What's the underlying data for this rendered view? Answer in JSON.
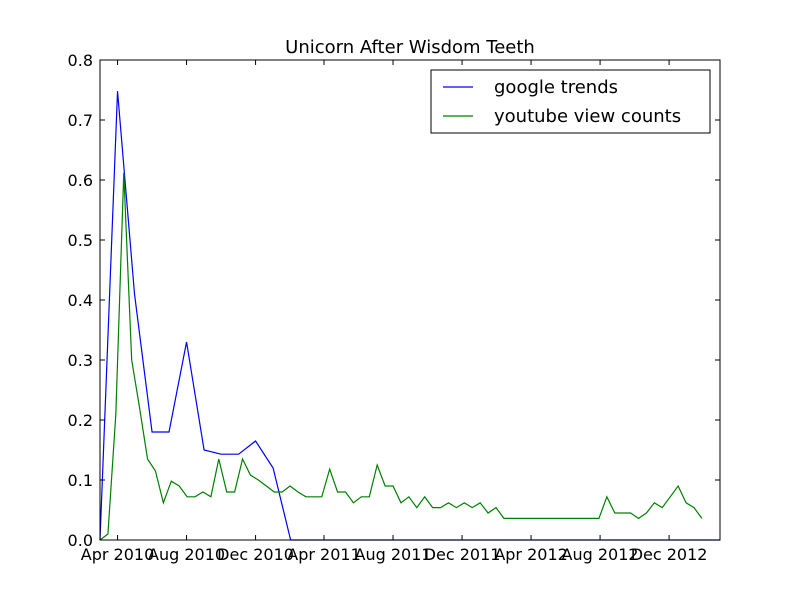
{
  "chart_data": {
    "type": "line",
    "title": "Unicorn After Wisdom Teeth",
    "xlabel": "",
    "ylabel": "",
    "x_range": [
      "2010-03-01",
      "2013-03-01"
    ],
    "ylim": [
      0,
      0.8
    ],
    "yticks": [
      0.0,
      0.1,
      0.2,
      0.3,
      0.4,
      0.5,
      0.6,
      0.7,
      0.8
    ],
    "ytick_labels": [
      "0.0",
      "0.1",
      "0.2",
      "0.3",
      "0.4",
      "0.5",
      "0.6",
      "0.7",
      "0.8"
    ],
    "xticks": [
      "2010-04-01",
      "2010-08-01",
      "2010-12-01",
      "2011-04-01",
      "2011-08-01",
      "2011-12-01",
      "2012-04-01",
      "2012-08-01",
      "2012-12-01"
    ],
    "xtick_labels": [
      "Apr 2010",
      "Aug 2010",
      "Dec 2010",
      "Apr 2011",
      "Aug 2011",
      "Dec 2011",
      "Apr 2012",
      "Aug 2012",
      "Dec 2012"
    ],
    "grid": false,
    "legend_position": "top-right",
    "series": [
      {
        "name": "google trends",
        "color": "#0000ff",
        "x": [
          "2010-03-01",
          "2010-04-01",
          "2010-05-01",
          "2010-06-01",
          "2010-07-01",
          "2010-08-01",
          "2010-09-01",
          "2010-10-01",
          "2010-11-01",
          "2010-12-01",
          "2011-01-01",
          "2011-02-01",
          "2011-03-01",
          "2013-03-01"
        ],
        "values": [
          0.0,
          0.748,
          0.41,
          0.18,
          0.18,
          0.33,
          0.15,
          0.143,
          0.143,
          0.165,
          0.12,
          0.0,
          0.0,
          0.0
        ]
      },
      {
        "name": "youtube view counts",
        "color": "#008000",
        "x": [
          "2010-03-01",
          "2010-03-15",
          "2010-03-29",
          "2010-04-12",
          "2010-04-26",
          "2010-05-10",
          "2010-05-24",
          "2010-06-07",
          "2010-06-21",
          "2010-07-05",
          "2010-07-19",
          "2010-08-02",
          "2010-08-16",
          "2010-08-30",
          "2010-09-13",
          "2010-09-27",
          "2010-10-11",
          "2010-10-25",
          "2010-11-08",
          "2010-11-22",
          "2010-12-06",
          "2010-12-20",
          "2011-01-03",
          "2011-01-17",
          "2011-01-31",
          "2011-02-14",
          "2011-02-28",
          "2011-03-14",
          "2011-03-28",
          "2011-04-11",
          "2011-04-25",
          "2011-05-09",
          "2011-05-23",
          "2011-06-06",
          "2011-06-20",
          "2011-07-04",
          "2011-07-18",
          "2011-08-01",
          "2011-08-15",
          "2011-08-29",
          "2011-09-12",
          "2011-09-26",
          "2011-10-10",
          "2011-10-24",
          "2011-11-07",
          "2011-11-21",
          "2011-12-05",
          "2011-12-19",
          "2012-01-02",
          "2012-01-16",
          "2012-01-30",
          "2012-02-13",
          "2012-02-27",
          "2012-03-12",
          "2012-03-26",
          "2012-04-09",
          "2012-04-23",
          "2012-05-07",
          "2012-05-21",
          "2012-06-04",
          "2012-06-18",
          "2012-07-02",
          "2012-07-16",
          "2012-07-30",
          "2012-08-13",
          "2012-08-27",
          "2012-09-10",
          "2012-09-24",
          "2012-10-08",
          "2012-10-22",
          "2012-11-05",
          "2012-11-19",
          "2012-12-03",
          "2012-12-17",
          "2012-12-31",
          "2013-01-14",
          "2013-01-28"
        ],
        "values": [
          0.0,
          0.01,
          0.21,
          0.612,
          0.3,
          0.22,
          0.135,
          0.115,
          0.062,
          0.098,
          0.09,
          0.072,
          0.072,
          0.08,
          0.072,
          0.135,
          0.08,
          0.08,
          0.135,
          0.108,
          0.1,
          0.09,
          0.08,
          0.08,
          0.09,
          0.08,
          0.072,
          0.072,
          0.072,
          0.118,
          0.08,
          0.08,
          0.062,
          0.072,
          0.072,
          0.125,
          0.09,
          0.09,
          0.062,
          0.072,
          0.054,
          0.072,
          0.054,
          0.054,
          0.062,
          0.054,
          0.062,
          0.054,
          0.062,
          0.045,
          0.054,
          0.036,
          0.036,
          0.036,
          0.036,
          0.036,
          0.036,
          0.036,
          0.036,
          0.036,
          0.036,
          0.036,
          0.036,
          0.036,
          0.072,
          0.045,
          0.045,
          0.045,
          0.036,
          0.045,
          0.062,
          0.054,
          0.072,
          0.09,
          0.062,
          0.054,
          0.036
        ]
      }
    ]
  }
}
